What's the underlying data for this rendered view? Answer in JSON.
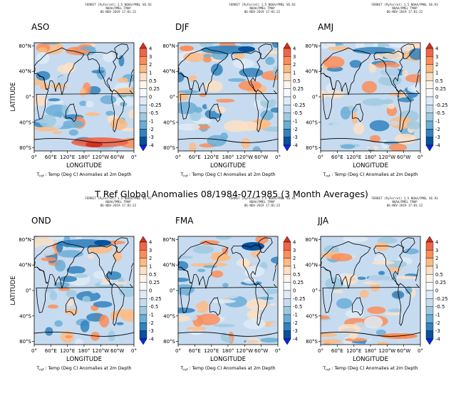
{
  "main_title": "T Ref Global Anomalies 08/1984-07/1985 (3 Month Averages)",
  "caption_prefix": "T",
  "caption_sub": "ref",
  "caption_rest": " : Temp (Deg C) Anomalies at 2m Depth",
  "header_lines": [
    "FERRET (PyFerret) 1.5 NOAA/PMEL V6.93",
    "NOAA/PMEL TMAP",
    "06-NOV-2019 17:01:22"
  ],
  "xlabel": "LONGITUDE",
  "ylabel": "LATITUDE",
  "x_ticks": [
    "0°",
    "60°E",
    "120°E",
    "180°",
    "120°W",
    "60°W",
    "0°"
  ],
  "y_ticks": [
    "80°N",
    "40°N",
    "0°",
    "40°S",
    "80°S"
  ],
  "colorbar": {
    "labels": [
      "4",
      "3",
      "2",
      "1",
      "0.5",
      "0.25",
      "0",
      "-0.25",
      "-0.5",
      "-1",
      "-2",
      "-3",
      "-4"
    ],
    "colors": [
      "#d7301f",
      "#ef6548",
      "#fc8d59",
      "#fdbb84",
      "#fde0c5",
      "#fff5eb",
      "#f7fbff",
      "#deebf7",
      "#c6dbef",
      "#9ecae1",
      "#6baed6",
      "#3182bd",
      "#08519c",
      "#0b24ff"
    ]
  },
  "panels": [
    {
      "season": "ASO"
    },
    {
      "season": "DJF"
    },
    {
      "season": "AMJ"
    },
    {
      "season": "OND"
    },
    {
      "season": "FMA"
    },
    {
      "season": "JJA"
    }
  ]
}
